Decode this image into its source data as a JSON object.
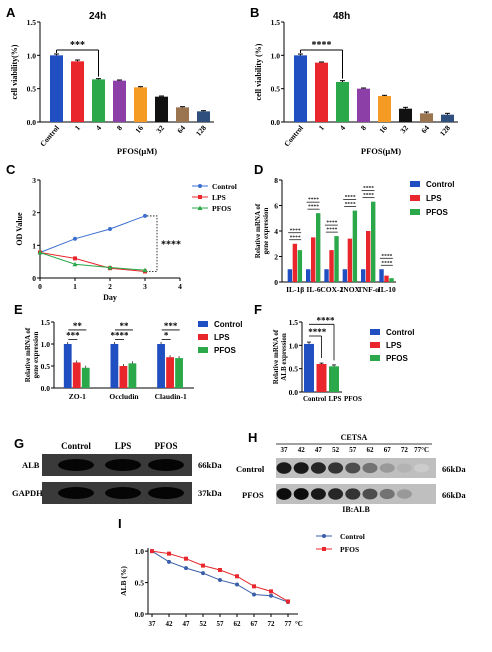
{
  "chart_data": [
    {
      "panel": "A",
      "type": "bar",
      "title": "24h",
      "ylabel": "cell viability(%)",
      "xlabel": "PFOS(μM)",
      "categories": [
        "Control",
        "1",
        "4",
        "8",
        "16",
        "32",
        "64",
        "128"
      ],
      "values": [
        1.0,
        0.91,
        0.64,
        0.62,
        0.52,
        0.38,
        0.22,
        0.16
      ],
      "errors": [
        0.02,
        0.02,
        0.01,
        0.01,
        0.01,
        0.01,
        0.01,
        0.01
      ],
      "colors": [
        "#1f4fc0",
        "#e8262b",
        "#2aa84a",
        "#8b3fa7",
        "#f59a23",
        "#111111",
        "#9b7450",
        "#2f4f7f"
      ],
      "yticks": [
        "0.0",
        "0.5",
        "1.0",
        "1.5"
      ],
      "ylim": [
        0,
        1.5
      ],
      "significance": {
        "from": "Control",
        "to": "4",
        "label": "***"
      }
    },
    {
      "panel": "B",
      "type": "bar",
      "title": "48h",
      "ylabel": "cell viability (%)",
      "xlabel": "PFOS(μM)",
      "categories": [
        "Control",
        "1",
        "4",
        "8",
        "16",
        "32",
        "64",
        "128"
      ],
      "values": [
        1.0,
        0.89,
        0.6,
        0.5,
        0.39,
        0.2,
        0.13,
        0.11
      ],
      "errors": [
        0.02,
        0.01,
        0.02,
        0.01,
        0.01,
        0.02,
        0.02,
        0.02
      ],
      "colors": [
        "#1f4fc0",
        "#e8262b",
        "#2aa84a",
        "#8b3fa7",
        "#f59a23",
        "#111111",
        "#9b7450",
        "#2f4f7f"
      ],
      "yticks": [
        "0.0",
        "0.5",
        "1.0",
        "1.5"
      ],
      "ylim": [
        0,
        1.5
      ],
      "significance": {
        "from": "Control",
        "to": "4",
        "label": "****"
      }
    },
    {
      "panel": "C",
      "type": "line",
      "ylabel": "OD Value",
      "xlabel": "Day",
      "x": [
        0,
        1,
        2,
        3
      ],
      "xticks": [
        "0",
        "1",
        "2",
        "3",
        "4"
      ],
      "xlim": [
        0,
        4
      ],
      "yticks": [
        "0",
        "1",
        "2",
        "3"
      ],
      "ylim": [
        0,
        3
      ],
      "series": [
        {
          "name": "Control",
          "color": "#3b6fd0",
          "marker": "circle",
          "values": [
            0.78,
            1.2,
            1.5,
            1.9
          ]
        },
        {
          "name": "LPS",
          "color": "#e8262b",
          "marker": "square",
          "values": [
            0.78,
            0.6,
            0.3,
            0.2
          ]
        },
        {
          "name": "PFOS",
          "color": "#2aa84a",
          "marker": "triangle",
          "values": [
            0.78,
            0.42,
            0.32,
            0.24
          ]
        }
      ],
      "significance": {
        "label": "****"
      }
    },
    {
      "panel": "D",
      "type": "bar",
      "ylabel": "Relative mRNA of gene expression",
      "categories": [
        "IL-1β",
        "IL-6",
        "COX-2",
        "INOX",
        "TNF-α",
        "IL-10"
      ],
      "yticks": [
        "0",
        "2",
        "4",
        "6",
        "8"
      ],
      "ylim": [
        0,
        8
      ],
      "series": [
        {
          "name": "Control",
          "color": "#1f4fc0",
          "values": [
            1.0,
            1.0,
            1.0,
            1.0,
            1.0,
            1.0
          ]
        },
        {
          "name": "LPS",
          "color": "#e8262b",
          "values": [
            3.0,
            3.5,
            2.5,
            3.4,
            4.0,
            0.5
          ]
        },
        {
          "name": "PFOS",
          "color": "#2aa84a",
          "values": [
            2.5,
            5.4,
            3.6,
            5.6,
            6.3,
            0.3
          ]
        }
      ],
      "sig_labels": [
        "****",
        "****"
      ]
    },
    {
      "panel": "E",
      "type": "bar",
      "ylabel": "Relative mRNA of gene expression",
      "categories": [
        "ZO-1",
        "Occludin",
        "Claudin-1"
      ],
      "yticks": [
        "0.0",
        "0.5",
        "1.0",
        "1.5"
      ],
      "ylim": [
        0,
        1.5
      ],
      "series": [
        {
          "name": "Control",
          "color": "#1f4fc0",
          "values": [
            1.0,
            1.0,
            1.0
          ]
        },
        {
          "name": "LPS",
          "color": "#e8262b",
          "values": [
            0.58,
            0.5,
            0.7
          ]
        },
        {
          "name": "PFOS",
          "color": "#2aa84a",
          "values": [
            0.46,
            0.56,
            0.68
          ]
        }
      ],
      "sig_labels": [
        [
          "**",
          "***"
        ],
        [
          "**",
          "****"
        ],
        [
          "***",
          "*"
        ]
      ]
    },
    {
      "panel": "F",
      "type": "bar",
      "ylabel": "Relative mRNA of ALB expression",
      "categories": [
        "Control",
        "LPS",
        "PFOS"
      ],
      "values": [
        1.03,
        0.6,
        0.55
      ],
      "errors": [
        0.04,
        0.02,
        0.03
      ],
      "colors": [
        "#1f4fc0",
        "#e8262b",
        "#2aa84a"
      ],
      "legend": [
        "Control",
        "LPS",
        "PFOS"
      ],
      "yticks": [
        "0.0",
        "0.5",
        "1.0",
        "1.5"
      ],
      "ylim": [
        0,
        1.5
      ],
      "sig_labels": [
        "****",
        "****"
      ]
    },
    {
      "panel": "I",
      "type": "line",
      "ylabel": "ALB (%)",
      "x": [
        "37",
        "42",
        "47",
        "52",
        "57",
        "62",
        "67",
        "72",
        "77"
      ],
      "x_suffix": "°C",
      "yticks": [
        "0.0",
        "0.5",
        "1.0"
      ],
      "ylim": [
        0,
        1.05
      ],
      "series": [
        {
          "name": "Control",
          "color": "#3b5fa8",
          "marker": "circle",
          "values": [
            1.0,
            0.83,
            0.73,
            0.65,
            0.54,
            0.47,
            0.31,
            0.29,
            0.19
          ]
        },
        {
          "name": "PFOS",
          "color": "#e8262b",
          "marker": "square",
          "values": [
            1.0,
            0.96,
            0.88,
            0.77,
            0.7,
            0.6,
            0.44,
            0.36,
            0.2
          ]
        }
      ]
    }
  ],
  "blots": {
    "G": {
      "panel": "G",
      "lanes": [
        "Control",
        "LPS",
        "PFOS"
      ],
      "rows": [
        {
          "label": "ALB",
          "size": "66kDa"
        },
        {
          "label": "GAPDH",
          "size": "37kDa"
        }
      ]
    },
    "H": {
      "panel": "H",
      "header": "CETSA",
      "temps": [
        "37",
        "42",
        "47",
        "52",
        "57",
        "62",
        "67",
        "72",
        "77°C"
      ],
      "rows": [
        {
          "label": "Control",
          "size": "66kDa",
          "intensity": [
            0.9,
            0.9,
            0.85,
            0.8,
            0.7,
            0.55,
            0.4,
            0.3,
            0.2
          ]
        },
        {
          "label": "PFOS",
          "size": "66kDa",
          "intensity": [
            0.95,
            0.95,
            0.9,
            0.85,
            0.8,
            0.7,
            0.55,
            0.4,
            0.25
          ]
        }
      ],
      "footer": "IB:ALB"
    }
  }
}
